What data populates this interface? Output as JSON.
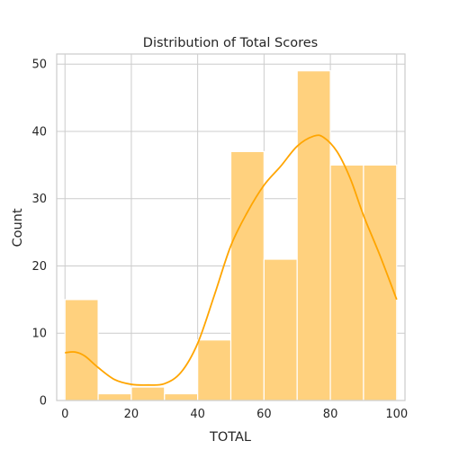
{
  "chart_data": {
    "type": "bar",
    "title": "Distribution of Total Scores",
    "xlabel": "TOTAL",
    "ylabel": "Count",
    "xlim": [
      -2.5,
      102.5
    ],
    "ylim": [
      0,
      51.5
    ],
    "x_ticks": [
      0,
      20,
      40,
      60,
      80,
      100
    ],
    "y_ticks": [
      0,
      10,
      20,
      30,
      40,
      50
    ],
    "grid": true,
    "bins": [
      {
        "x0": 0,
        "x1": 10,
        "count": 15
      },
      {
        "x0": 10,
        "x1": 20,
        "count": 1
      },
      {
        "x0": 20,
        "x1": 30,
        "count": 2
      },
      {
        "x0": 30,
        "x1": 40,
        "count": 1
      },
      {
        "x0": 40,
        "x1": 50,
        "count": 9
      },
      {
        "x0": 50,
        "x1": 60,
        "count": 37
      },
      {
        "x0": 60,
        "x1": 70,
        "count": 21
      },
      {
        "x0": 70,
        "x1": 80,
        "count": 49
      },
      {
        "x0": 80,
        "x1": 90,
        "count": 35
      },
      {
        "x0": 90,
        "x1": 100,
        "count": 35
      }
    ],
    "kde": {
      "x": [
        0,
        3,
        6,
        10,
        15,
        20,
        25,
        30,
        35,
        40,
        45,
        50,
        55,
        60,
        65,
        70,
        75,
        78,
        82,
        86,
        90,
        95,
        100
      ],
      "y": [
        7.1,
        7.2,
        6.6,
        4.9,
        3.1,
        2.4,
        2.3,
        2.5,
        4.2,
        8.5,
        15.6,
        23.0,
        28.0,
        32.0,
        34.8,
        37.8,
        39.3,
        39.1,
        37.0,
        33.0,
        27.5,
        21.5,
        15.0
      ]
    },
    "colors": {
      "bar_fill": "#ffd17e",
      "bar_stroke": "#ffffff",
      "kde_line": "#ffa500",
      "grid": "#cccccc",
      "axes_edge": "#cccccc"
    }
  }
}
